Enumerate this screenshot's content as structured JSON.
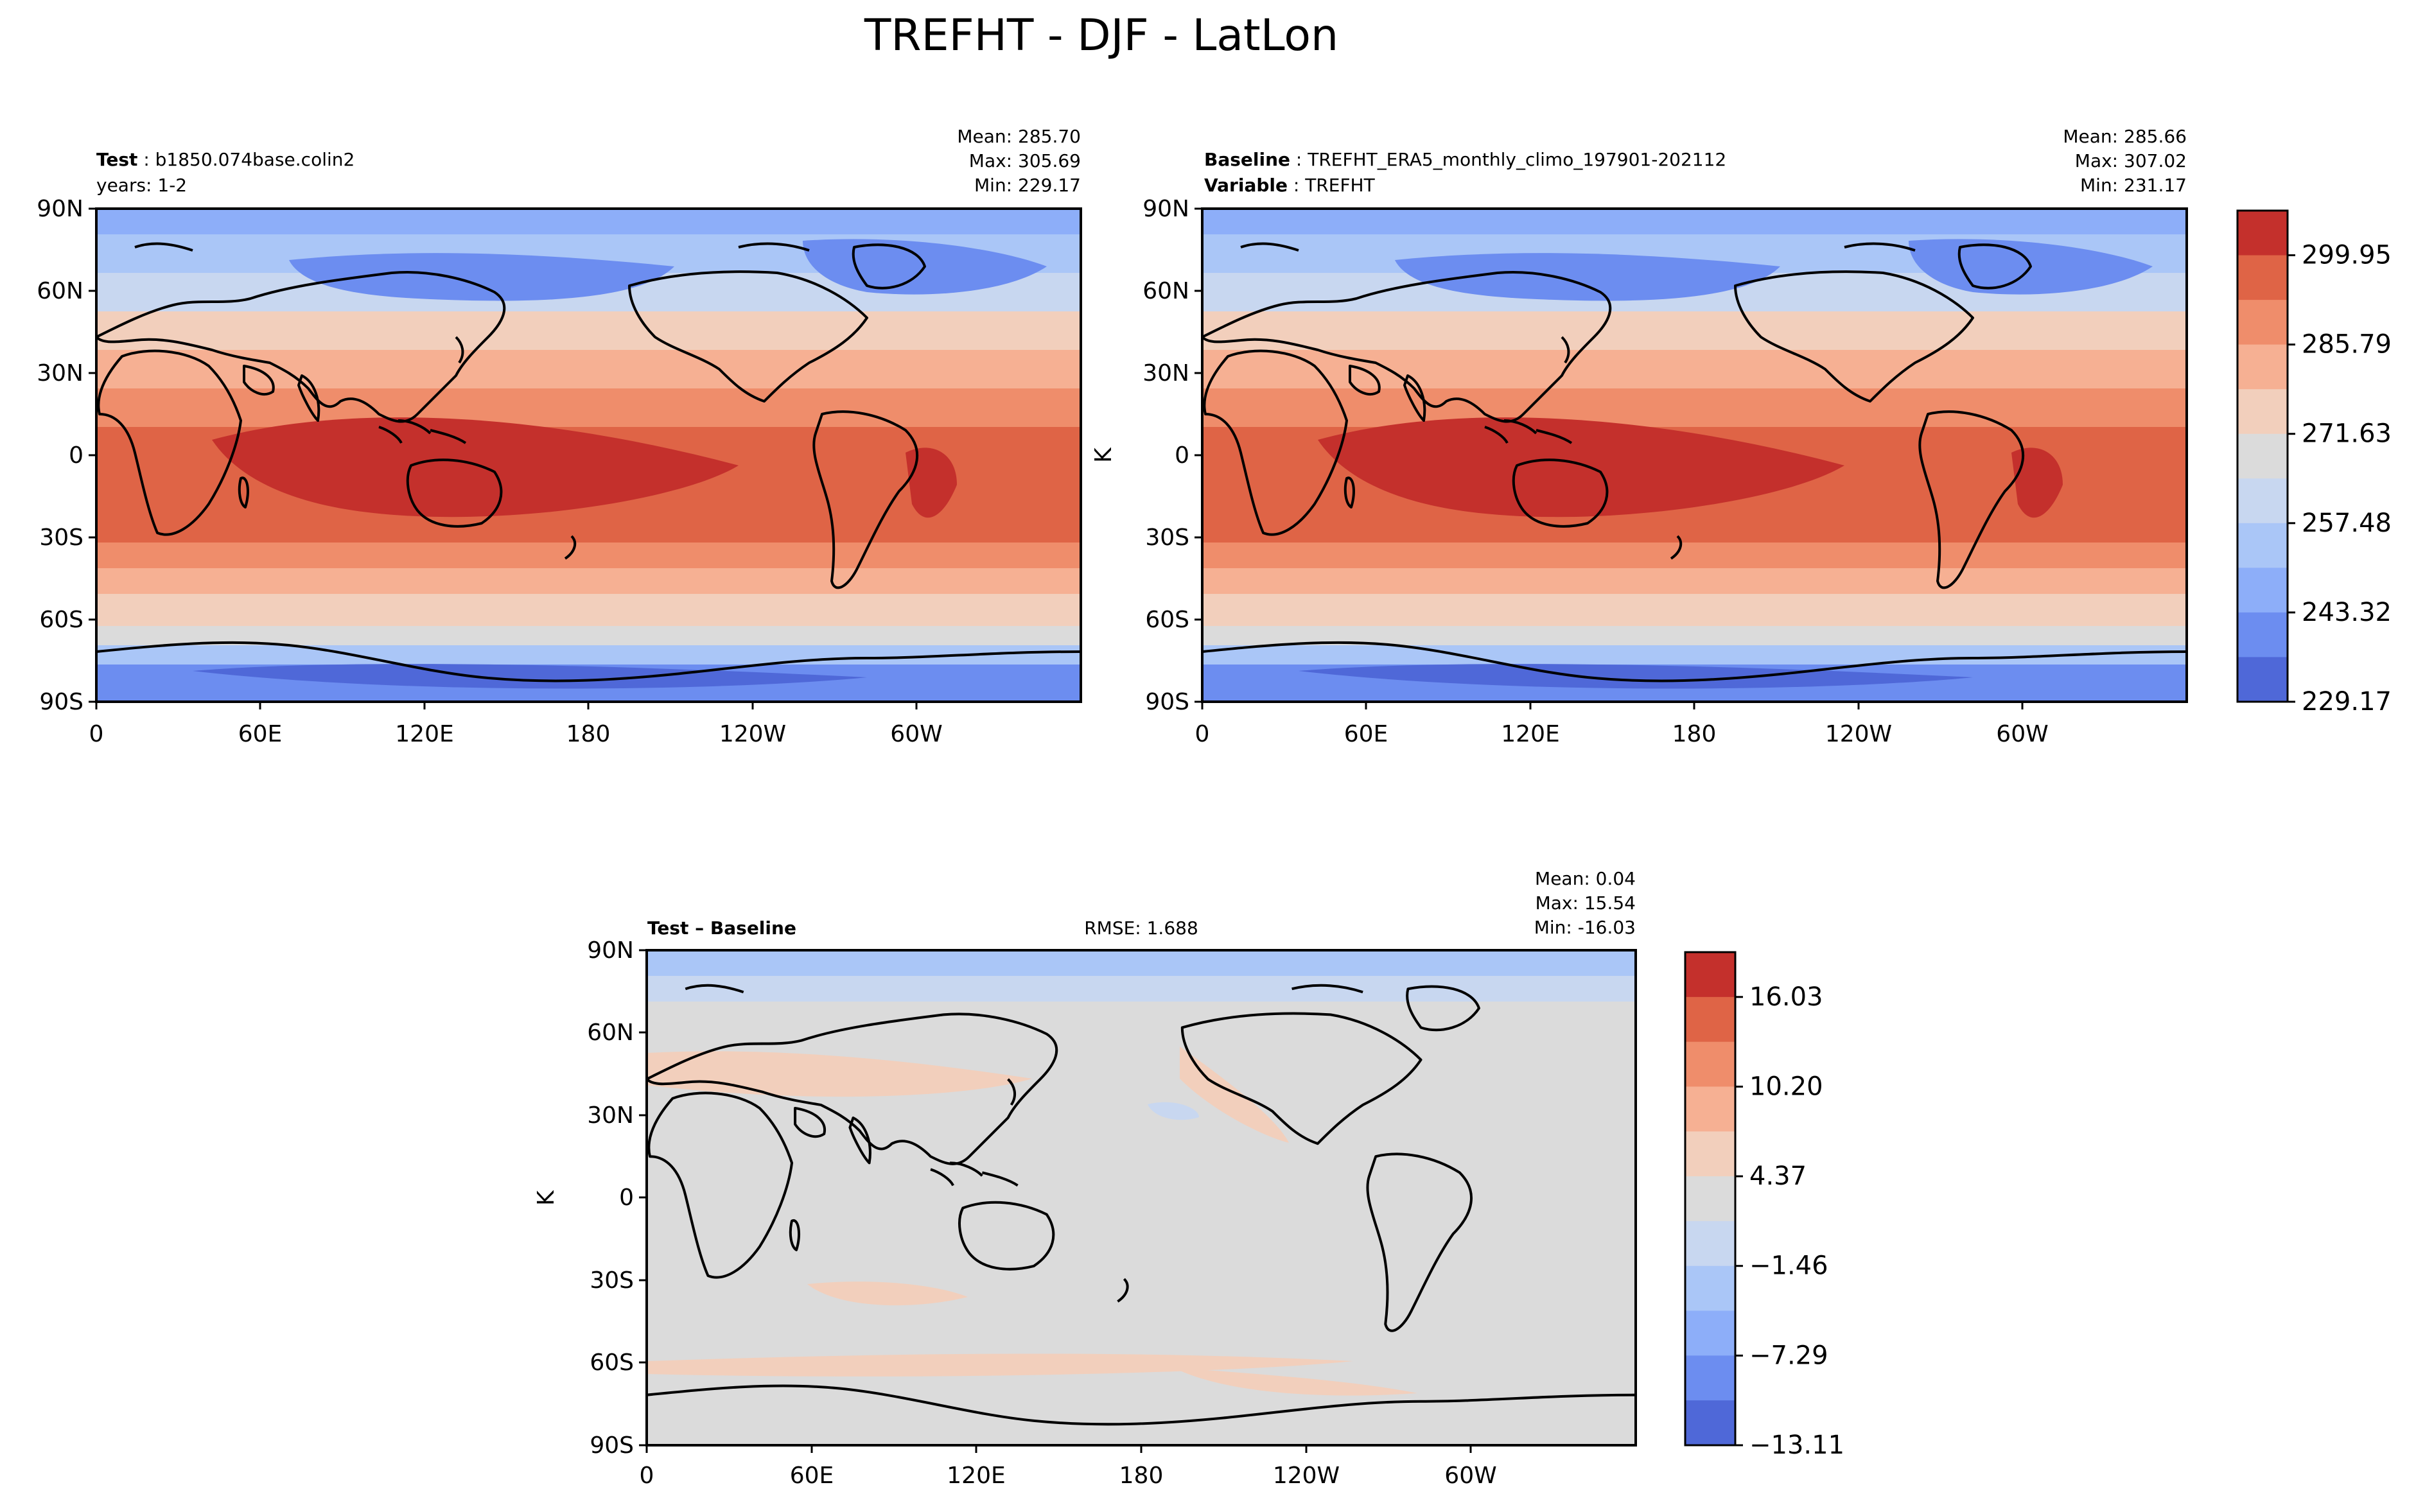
{
  "figure": {
    "title": "TREFHT - DJF - LatLon"
  },
  "panels": [
    {
      "id": "test",
      "label_key": "Test",
      "label_val": "b1850.074base.colin2",
      "line2": "years: 1-2",
      "stats": {
        "mean": "Mean: 285.70",
        "max": "Max: 305.69",
        "min": "Min: 229.17"
      }
    },
    {
      "id": "baseline",
      "label_key": "Baseline",
      "label_val": "TREFHT_ERA5_monthly_climo_197901-202112",
      "line2_key": "Variable",
      "line2_val": "TREFHT",
      "ylabel": "K",
      "stats": {
        "mean": "Mean: 285.66",
        "max": "Max: 307.02",
        "min": "Min: 231.17"
      }
    },
    {
      "id": "diff",
      "label": "Test – Baseline",
      "rmse": "RMSE: 1.688",
      "ylabel": "K",
      "stats": {
        "mean": "Mean:  0.04",
        "max": "Max: 15.54",
        "min": "Min: -16.03"
      }
    }
  ],
  "axes": {
    "lat_ticks": [
      "90N",
      "60N",
      "30N",
      "0",
      "30S",
      "60S",
      "90S"
    ],
    "lon_ticks": [
      "0",
      "60E",
      "120E",
      "180",
      "120W",
      "60W"
    ]
  },
  "colorbars": {
    "field": {
      "ticks": [
        "299.95",
        "285.79",
        "271.63",
        "257.48",
        "243.32",
        "229.17"
      ],
      "colors_top_to_bottom": [
        "#c4302c",
        "#df6446",
        "#ef8d6b",
        "#f6b093",
        "#f2cfbc",
        "#dbdbdb",
        "#c8d7f0",
        "#aac6f7",
        "#8daef9",
        "#6c8df0",
        "#4f68d8"
      ]
    },
    "diff": {
      "ticks": [
        "16.03",
        "10.20",
        "4.37",
        "−1.46",
        "−7.29",
        "−13.11"
      ],
      "colors_top_to_bottom": [
        "#c4302c",
        "#df6446",
        "#ef8d6b",
        "#f6b093",
        "#f2cfbc",
        "#dbdbdb",
        "#c8d7f0",
        "#aac6f7",
        "#8daef9",
        "#6c8df0",
        "#4f68d8"
      ]
    }
  },
  "colors": {
    "warm_tropics": "#c4302c",
    "warm": "#df6446",
    "mild": "#ef8d6b",
    "cool_mild": "#f6b093",
    "neutral_warm": "#f2cfbc",
    "neutral": "#dbdbdb",
    "cool": "#c8d7f0",
    "cold": "#aac6f7",
    "colder": "#8daef9",
    "very_cold": "#6c8df0",
    "coldest": "#4f68d8"
  }
}
